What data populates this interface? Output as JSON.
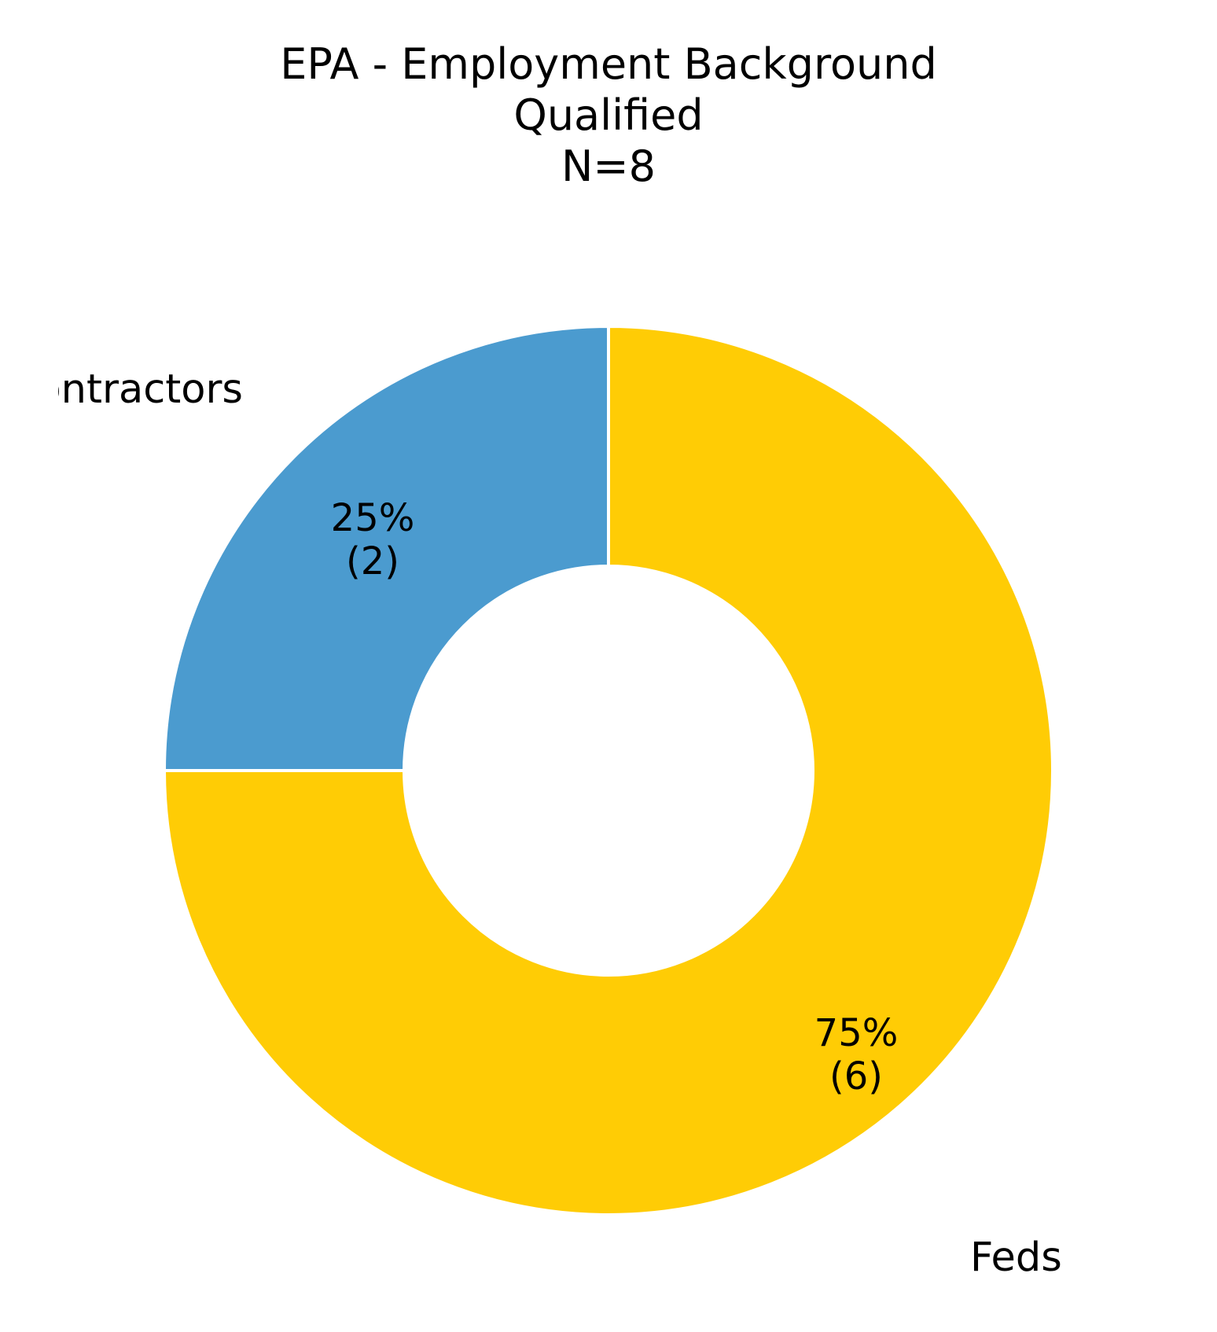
{
  "chart": {
    "type": "pie-donut",
    "title_line1": "EPA - Employment Background",
    "title_line2": "Qualified",
    "title_line3": "N=8",
    "title_fontsize": 54,
    "title_color": "#000000",
    "background_color": "#ffffff",
    "outer_radius": 565,
    "inner_radius": 260,
    "start_angle_deg": 90,
    "direction": "clockwise",
    "label_fontsize": 51,
    "inner_fontsize": 48,
    "slices": [
      {
        "name": "Feds",
        "value": 6,
        "percent": "75%",
        "count_label": "(6)",
        "color": "#ffcc05",
        "angle_deg": 270,
        "outer_label_anchor": "start",
        "outer_label_dx": 460,
        "outer_label_dy": 622,
        "inner_label_dx": 315,
        "inner_label_dy": 350
      },
      {
        "name": "Contractors",
        "value": 2,
        "percent": "25%",
        "count_label": "(2)",
        "color": "#4b9bcf",
        "angle_deg": 90,
        "outer_label_anchor": "end",
        "outer_label_dx": -465,
        "outer_label_dy": -482,
        "inner_label_dx": -300,
        "inner_label_dy": -305
      }
    ]
  }
}
